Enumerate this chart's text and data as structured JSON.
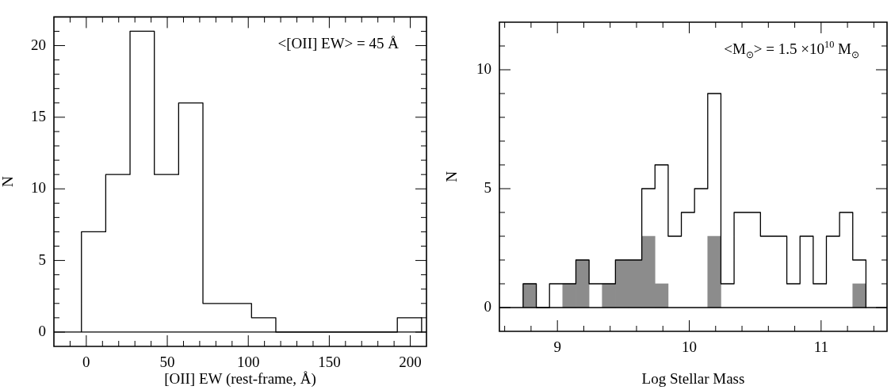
{
  "chart_data": [
    {
      "type": "histogram",
      "xlabel": "[OII] EW (rest-frame, Å)",
      "ylabel": "N",
      "color": "#000000",
      "bins": [
        -3,
        12,
        27,
        42,
        57,
        72,
        87,
        102,
        117,
        132,
        147,
        162,
        177,
        192,
        207
      ],
      "values": [
        7,
        11,
        21,
        11,
        16,
        2,
        2,
        1,
        0,
        0,
        0,
        0,
        0,
        1
      ],
      "xlim": [
        -20,
        210
      ],
      "ylim": [
        -1,
        22
      ],
      "xticks": [
        {
          "value": -10,
          "label": null
        },
        0,
        {
          "value": 10,
          "label": null
        },
        {
          "value": 20,
          "label": null
        },
        {
          "value": 30,
          "label": null
        },
        {
          "value": 40,
          "label": null
        },
        50,
        {
          "value": 60,
          "label": null
        },
        {
          "value": 70,
          "label": null
        },
        {
          "value": 80,
          "label": null
        },
        {
          "value": 90,
          "label": null
        },
        100,
        {
          "value": 110,
          "label": null
        },
        {
          "value": 120,
          "label": null
        },
        {
          "value": 130,
          "label": null
        },
        {
          "value": 140,
          "label": null
        },
        150,
        {
          "value": 160,
          "label": null
        },
        {
          "value": 170,
          "label": null
        },
        {
          "value": 180,
          "label": null
        },
        {
          "value": 190,
          "label": null
        },
        200
      ],
      "yticks": [
        0,
        {
          "value": 1,
          "label": null
        },
        {
          "value": 2,
          "label": null
        },
        {
          "value": 3,
          "label": null
        },
        {
          "value": 4,
          "label": null
        },
        5,
        {
          "value": 6,
          "label": null
        },
        {
          "value": 7,
          "label": null
        },
        {
          "value": 8,
          "label": null
        },
        {
          "value": 9,
          "label": null
        },
        10,
        {
          "value": 11,
          "label": null
        },
        {
          "value": 12,
          "label": null
        },
        {
          "value": 13,
          "label": null
        },
        {
          "value": 14,
          "label": null
        },
        15,
        {
          "value": 16,
          "label": null
        },
        {
          "value": 17,
          "label": null
        },
        {
          "value": 18,
          "label": null
        },
        {
          "value": 19,
          "label": null
        },
        20,
        {
          "value": 21,
          "label": null
        }
      ],
      "ref_lines": [
        {
          "axis": "y",
          "value": 0
        }
      ],
      "annotations": [
        "<[OII] EW> = 45 Å"
      ]
    },
    {
      "type": "histogram",
      "xlabel": "Log Stellar Mass",
      "ylabel": "N",
      "bins": [
        8.74,
        8.84,
        8.94,
        9.04,
        9.14,
        9.24,
        9.34,
        9.44,
        9.54,
        9.64,
        9.74,
        9.84,
        9.94,
        10.04,
        10.14,
        10.24,
        10.34,
        10.44,
        10.54,
        10.64,
        10.74,
        10.84,
        10.94,
        11.04,
        11.14,
        11.24,
        11.34
      ],
      "series": [
        {
          "color": "#000000",
          "values": [
            1,
            0,
            1,
            1,
            2,
            1,
            1,
            2,
            2,
            5,
            6,
            3,
            4,
            5,
            9,
            1,
            4,
            4,
            3,
            3,
            1,
            3,
            1,
            3,
            4,
            2
          ]
        },
        {
          "color": "#8c8c8c",
          "values": [
            1,
            0,
            0,
            1,
            2,
            0,
            1,
            2,
            2,
            3,
            1,
            0,
            0,
            0,
            3,
            0,
            0,
            0,
            0,
            0,
            0,
            0,
            0,
            0,
            0,
            1
          ]
        }
      ],
      "xlim": [
        8.56,
        11.5
      ],
      "ylim": [
        -1,
        12
      ],
      "xticks": [
        {
          "value": 8.6,
          "label": null
        },
        {
          "value": 8.8,
          "label": null
        },
        9,
        {
          "value": 9.2,
          "label": null
        },
        {
          "value": 9.4,
          "label": null
        },
        {
          "value": 9.6,
          "label": null
        },
        {
          "value": 9.8,
          "label": null
        },
        10,
        {
          "value": 10.2,
          "label": null
        },
        {
          "value": 10.4,
          "label": null
        },
        {
          "value": 10.6,
          "label": null
        },
        {
          "value": 10.8,
          "label": null
        },
        11,
        {
          "value": 11.2,
          "label": null
        },
        {
          "value": 11.4,
          "label": null
        }
      ],
      "yticks": [
        0,
        {
          "value": 1,
          "label": null
        },
        {
          "value": 2,
          "label": null
        },
        {
          "value": 3,
          "label": null
        },
        {
          "value": 4,
          "label": null
        },
        5,
        {
          "value": 6,
          "label": null
        },
        {
          "value": 7,
          "label": null
        },
        {
          "value": 8,
          "label": null
        },
        {
          "value": 9,
          "label": null
        },
        10,
        {
          "value": 11,
          "label": null
        }
      ],
      "ref_lines": [
        {
          "axis": "y",
          "value": 0
        }
      ],
      "annotations": [
        "<M$_{⊙}$> = 1.5 ×10$^{10}$ M$_{⊙}$"
      ]
    }
  ]
}
